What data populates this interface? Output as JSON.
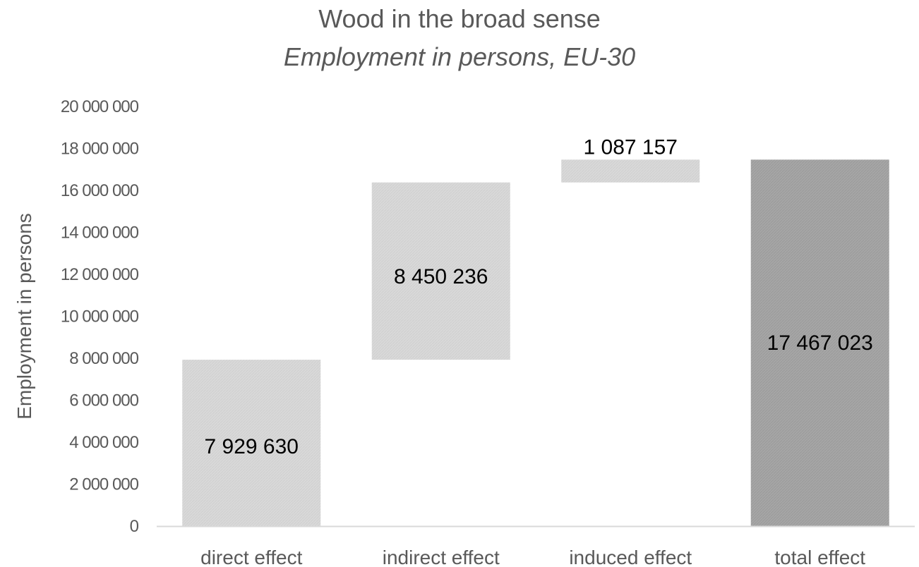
{
  "chart_data": {
    "type": "bar",
    "subtype": "waterfall",
    "title": "Wood in the broad sense",
    "subtitle": "Employment in persons, EU-30",
    "xlabel": "",
    "ylabel": "Employment in persons",
    "ylim": [
      0,
      20000000
    ],
    "yticks": [
      0,
      2000000,
      4000000,
      6000000,
      8000000,
      10000000,
      12000000,
      14000000,
      16000000,
      18000000,
      20000000
    ],
    "ytick_labels": [
      "0",
      "2 000 000",
      "4 000 000",
      "6 000 000",
      "8 000 000",
      "10 000 000",
      "12 000 000",
      "14 000 000",
      "16 000 000",
      "18 000 000",
      "20 000 000"
    ],
    "categories": [
      "direct effect",
      "indirect effect",
      "induced effect",
      "total effect"
    ],
    "values": [
      7929630,
      8450236,
      1087157,
      17467023
    ],
    "data_labels": [
      "7 929 630",
      "8 450 236",
      "1 087 157",
      "17 467 023"
    ],
    "bar_kinds": [
      "increase",
      "increase",
      "increase",
      "total"
    ],
    "grid": false,
    "legend": "none",
    "colors": {
      "increase": "#d9d9d9",
      "total": "#a6a6a6",
      "axis": "#d9d9d9",
      "text": "#595959",
      "label": "#000000"
    }
  }
}
